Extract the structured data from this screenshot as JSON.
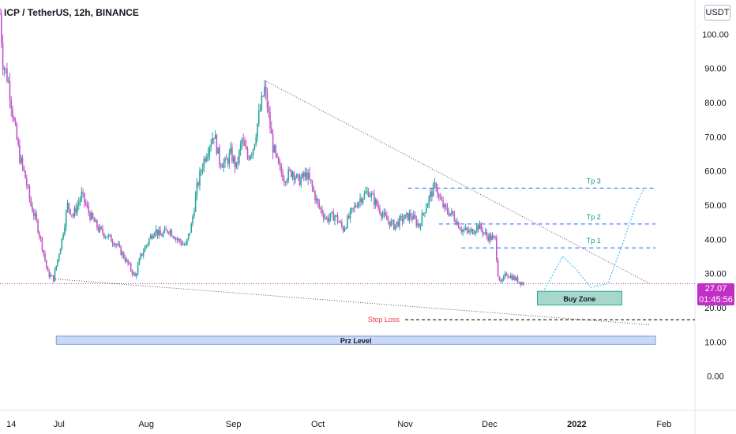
{
  "header": {
    "title": "ICP / TetherUS, 12h, BINANCE"
  },
  "currency_button": "USDT",
  "price_label": {
    "price": "27.07",
    "countdown": "01:45:56"
  },
  "colors": {
    "up": "#26a69a",
    "down": "#c056c8",
    "trendline": "#787b86",
    "target_line": "#2962ff",
    "target_text": "#089981",
    "stop_text": "#f23645",
    "buy_zone_fill": "#a5d8cb",
    "prz_fill": "#c9d8f5",
    "current_price_line": "#c12fc6",
    "projection": "#4fc3f7"
  },
  "chart_data": {
    "type": "candlestick",
    "y_axis": {
      "ticks": [
        0,
        10,
        20,
        30,
        40,
        50,
        60,
        70,
        80,
        90,
        100
      ],
      "tick_labels": [
        "0.00",
        "10.00",
        "20.00",
        "30.00",
        "40.00",
        "50.00",
        "60.00",
        "70.00",
        "80.00",
        "90.00",
        "100.00"
      ],
      "ylim": [
        -10,
        110
      ]
    },
    "x_axis": {
      "tick_labels": [
        "14",
        "Jul",
        "Aug",
        "Sep",
        "Oct",
        "Nov",
        "Dec",
        "2022",
        "Feb"
      ],
      "tick_dates": [
        "2021-06-14",
        "2021-07-01",
        "2021-08-01",
        "2021-09-01",
        "2021-10-01",
        "2021-11-01",
        "2021-12-01",
        "2022-01-01",
        "2022-02-01"
      ],
      "xlim": [
        "2021-06-10",
        "2022-02-12"
      ]
    },
    "price_series_close": [
      [
        "2021-06-10",
        106
      ],
      [
        "2021-06-11",
        92
      ],
      [
        "2021-06-13",
        86
      ],
      [
        "2021-06-15",
        74
      ],
      [
        "2021-06-17",
        64
      ],
      [
        "2021-06-19",
        58
      ],
      [
        "2021-06-21",
        50
      ],
      [
        "2021-06-23",
        45
      ],
      [
        "2021-06-25",
        38
      ],
      [
        "2021-06-27",
        30
      ],
      [
        "2021-06-29",
        28.5
      ],
      [
        "2021-07-02",
        40
      ],
      [
        "2021-07-04",
        50
      ],
      [
        "2021-07-06",
        47
      ],
      [
        "2021-07-09",
        53
      ],
      [
        "2021-07-12",
        47
      ],
      [
        "2021-07-15",
        43
      ],
      [
        "2021-07-18",
        41
      ],
      [
        "2021-07-21",
        39
      ],
      [
        "2021-07-24",
        35
      ],
      [
        "2021-07-26",
        32
      ],
      [
        "2021-07-28",
        29
      ],
      [
        "2021-07-30",
        35
      ],
      [
        "2021-08-02",
        40
      ],
      [
        "2021-08-04",
        43
      ],
      [
        "2021-08-06",
        41
      ],
      [
        "2021-08-09",
        43
      ],
      [
        "2021-08-12",
        40
      ],
      [
        "2021-08-15",
        38
      ],
      [
        "2021-08-17",
        44
      ],
      [
        "2021-08-19",
        55
      ],
      [
        "2021-08-21",
        62
      ],
      [
        "2021-08-23",
        67
      ],
      [
        "2021-08-25",
        71
      ],
      [
        "2021-08-27",
        63
      ],
      [
        "2021-08-29",
        62
      ],
      [
        "2021-08-31",
        65
      ],
      [
        "2021-09-02",
        61
      ],
      [
        "2021-09-04",
        69
      ],
      [
        "2021-09-06",
        64
      ],
      [
        "2021-09-08",
        67
      ],
      [
        "2021-09-10",
        76
      ],
      [
        "2021-09-12",
        84
      ],
      [
        "2021-09-13",
        79
      ],
      [
        "2021-09-15",
        67
      ],
      [
        "2021-09-17",
        61
      ],
      [
        "2021-09-19",
        58
      ],
      [
        "2021-09-22",
        60
      ],
      [
        "2021-09-24",
        57
      ],
      [
        "2021-09-27",
        59
      ],
      [
        "2021-09-29",
        55
      ],
      [
        "2021-10-01",
        50
      ],
      [
        "2021-10-04",
        46
      ],
      [
        "2021-10-07",
        47
      ],
      [
        "2021-10-10",
        43
      ],
      [
        "2021-10-13",
        48
      ],
      [
        "2021-10-16",
        52
      ],
      [
        "2021-10-19",
        54
      ],
      [
        "2021-10-22",
        50
      ],
      [
        "2021-10-25",
        46
      ],
      [
        "2021-10-28",
        44
      ],
      [
        "2021-10-31",
        46
      ],
      [
        "2021-11-03",
        47
      ],
      [
        "2021-11-06",
        44
      ],
      [
        "2021-11-08",
        49
      ],
      [
        "2021-11-10",
        53
      ],
      [
        "2021-11-12",
        56
      ],
      [
        "2021-11-13",
        52
      ],
      [
        "2021-11-15",
        49
      ],
      [
        "2021-11-18",
        47
      ],
      [
        "2021-11-21",
        43
      ],
      [
        "2021-11-24",
        42
      ],
      [
        "2021-11-27",
        44
      ],
      [
        "2021-11-30",
        41
      ],
      [
        "2021-12-03",
        40
      ],
      [
        "2021-12-04",
        30
      ],
      [
        "2021-12-05",
        27
      ],
      [
        "2021-12-07",
        30
      ],
      [
        "2021-12-09",
        29
      ],
      [
        "2021-12-11",
        28
      ],
      [
        "2021-12-13",
        27.07
      ]
    ],
    "current_price": 27.07,
    "annotations": {
      "targets": [
        {
          "label": "Tp 3",
          "price": 55
        },
        {
          "label": "Tp 2",
          "price": 44.5
        },
        {
          "label": "Tp 1",
          "price": 37.5
        }
      ],
      "stop_loss": {
        "label": "Stop Loss",
        "price": 16.5
      },
      "buy_zone": {
        "label": "Buy Zone",
        "price_range": [
          20.8,
          24.8
        ],
        "date_range": [
          "2021-12-18",
          "2022-01-17"
        ]
      },
      "prz_level": {
        "label": "Prz Level",
        "price_range": [
          9.3,
          11.7
        ],
        "date_range": [
          "2021-06-30",
          "2022-01-29"
        ]
      },
      "trendlines": [
        {
          "from": [
            "2021-09-12",
            86.5
          ],
          "to": [
            "2022-01-27",
            27
          ]
        },
        {
          "from": [
            "2021-06-28",
            28.5
          ],
          "to": [
            "2022-01-27",
            15
          ]
        }
      ]
    }
  }
}
